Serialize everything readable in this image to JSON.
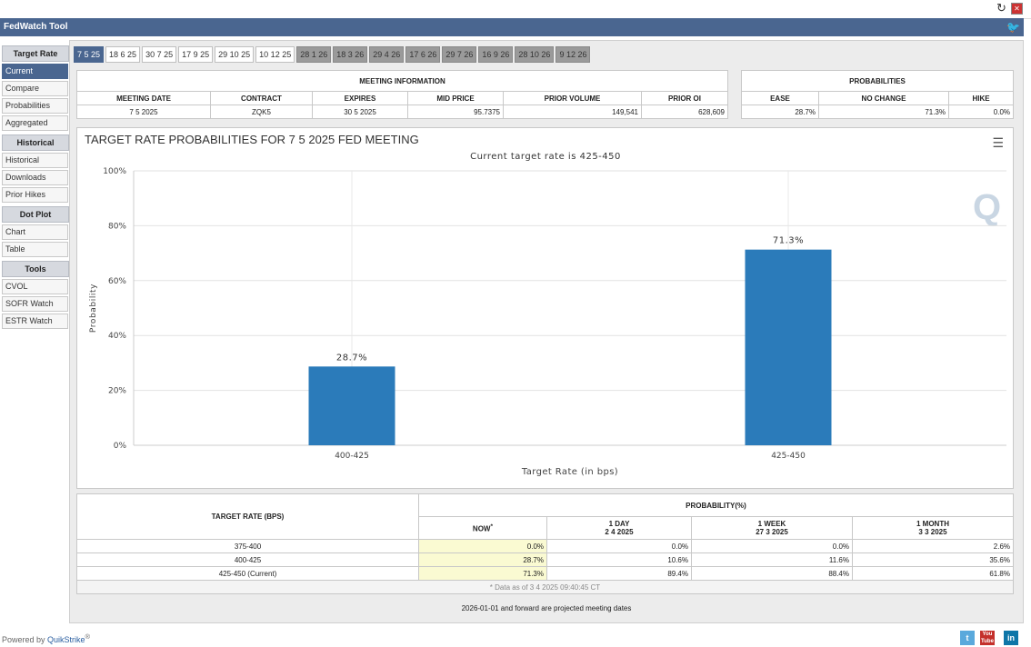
{
  "app": {
    "title": "FedWatch Tool"
  },
  "sidebar": {
    "groups": [
      {
        "title": "Target Rate",
        "items": [
          "Current",
          "Compare",
          "Probabilities",
          "Aggregated"
        ]
      },
      {
        "title": "Historical",
        "items": [
          "Historical",
          "Downloads",
          "Prior Hikes"
        ]
      },
      {
        "title": "Dot Plot",
        "items": [
          "Chart",
          "Table"
        ]
      },
      {
        "title": "Tools",
        "items": [
          "CVOL",
          "SOFR Watch",
          "ESTR Watch"
        ]
      }
    ]
  },
  "tabs": [
    "7 5 25",
    "18 6 25",
    "30 7 25",
    "17 9 25",
    "29 10 25",
    "10 12 25",
    "28 1 26",
    "18 3 26",
    "29 4 26",
    "17 6 26",
    "29 7 26",
    "16 9 26",
    "28 10 26",
    "9 12 26"
  ],
  "meeting_info": {
    "heading": "MEETING INFORMATION",
    "headers": [
      "MEETING DATE",
      "CONTRACT",
      "EXPIRES",
      "MID PRICE",
      "PRIOR VOLUME",
      "PRIOR OI"
    ],
    "values": [
      "7 5 2025",
      "ZQK5",
      "30 5 2025",
      "95.7375",
      "149,541",
      "628,609"
    ]
  },
  "probabilities": {
    "heading": "PROBABILITIES",
    "headers": [
      "EASE",
      "NO CHANGE",
      "HIKE"
    ],
    "values": [
      "28.7%",
      "71.3%",
      "0.0%"
    ]
  },
  "chart": {
    "title": "TARGET RATE PROBABILITIES FOR 7 5 2025 FED MEETING",
    "subtitle": "Current target rate is 425-450",
    "watermark": "Q"
  },
  "chart_data": {
    "type": "bar",
    "title": "TARGET RATE PROBABILITIES FOR 7 5 2025 FED MEETING",
    "subtitle": "Current target rate is 425-450",
    "categories": [
      "400-425",
      "425-450"
    ],
    "values": [
      28.7,
      71.3
    ],
    "value_labels": [
      "28.7%",
      "71.3%"
    ],
    "xlabel": "Target Rate (in bps)",
    "ylabel": "Probability",
    "ylim": [
      0,
      100
    ],
    "yticks": [
      "0%",
      "20%",
      "40%",
      "60%",
      "80%",
      "100%"
    ],
    "grid": true,
    "color": "#2b7bba"
  },
  "prob_table": {
    "col1_header": "TARGET RATE (BPS)",
    "prob_header": "PROBABILITY(%)",
    "sub_headers": [
      {
        "line1": "NOW",
        "line2": "*"
      },
      {
        "line1": "1 DAY",
        "line2": "2 4 2025"
      },
      {
        "line1": "1 WEEK",
        "line2": "27 3 2025"
      },
      {
        "line1": "1 MONTH",
        "line2": "3 3 2025"
      }
    ],
    "rows": [
      {
        "rate": "375-400",
        "vals": [
          "0.0%",
          "0.0%",
          "0.0%",
          "2.6%"
        ]
      },
      {
        "rate": "400-425",
        "vals": [
          "28.7%",
          "10.6%",
          "11.6%",
          "35.6%"
        ]
      },
      {
        "rate": "425-450 (Current)",
        "vals": [
          "71.3%",
          "89.4%",
          "88.4%",
          "61.8%"
        ]
      }
    ],
    "data_note": "* Data as of 3 4 2025 09:40:45 CT"
  },
  "footer_note": "2026-01-01 and forward are projected meeting dates",
  "powered_by": {
    "prefix": "Powered by ",
    "brand": "QuikStrike",
    "mark": "®"
  },
  "social": {
    "twitter": "t",
    "youtube": "You Tube",
    "linkedin": "in"
  },
  "colors": {
    "header": "#4a6690",
    "bar": "#2b7bba",
    "highlight": "#fafad2"
  }
}
